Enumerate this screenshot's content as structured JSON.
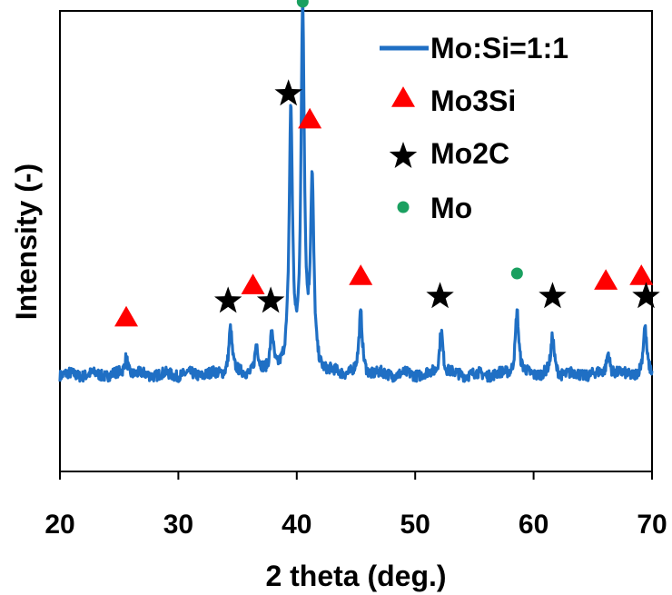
{
  "chart_data": {
    "type": "line",
    "title": "",
    "xlabel": "2 theta (deg.)",
    "ylabel": "Intensity (-)",
    "xlim": [
      20,
      70
    ],
    "ylim": [
      0,
      100
    ],
    "x_ticks": [
      20,
      30,
      40,
      50,
      60,
      70
    ],
    "grid": false,
    "legend_position": "top-right",
    "series": [
      {
        "name": "Mo:Si=1:1",
        "color": "#1f6fc4",
        "baseline": 21,
        "noise": 1.2,
        "peaks": [
          {
            "x": 25.6,
            "y": 4
          },
          {
            "x": 34.4,
            "y": 10
          },
          {
            "x": 36.6,
            "y": 6
          },
          {
            "x": 37.9,
            "y": 9
          },
          {
            "x": 39.5,
            "y": 56
          },
          {
            "x": 40.5,
            "y": 78
          },
          {
            "x": 41.3,
            "y": 40
          },
          {
            "x": 45.4,
            "y": 13
          },
          {
            "x": 52.2,
            "y": 10
          },
          {
            "x": 58.6,
            "y": 14
          },
          {
            "x": 61.6,
            "y": 8
          },
          {
            "x": 66.3,
            "y": 5
          },
          {
            "x": 69.4,
            "y": 10
          }
        ]
      }
    ],
    "markers": [
      {
        "name": "Mo3Si",
        "shape": "triangle",
        "color": "#ff0000",
        "points": [
          [
            25.6,
            33
          ],
          [
            36.3,
            40
          ],
          [
            41.1,
            76
          ],
          [
            45.4,
            42
          ],
          [
            66.1,
            41
          ],
          [
            69.1,
            42
          ]
        ]
      },
      {
        "name": "Mo2C",
        "shape": "star",
        "color": "#000000",
        "points": [
          [
            34.2,
            37
          ],
          [
            37.8,
            37
          ],
          [
            39.3,
            82
          ],
          [
            52.1,
            38
          ],
          [
            61.6,
            38
          ],
          [
            69.5,
            38
          ]
        ]
      },
      {
        "name": "Mo",
        "shape": "circle",
        "color": "#1aa060",
        "points": [
          [
            40.5,
            102
          ],
          [
            58.6,
            43
          ]
        ]
      }
    ]
  }
}
